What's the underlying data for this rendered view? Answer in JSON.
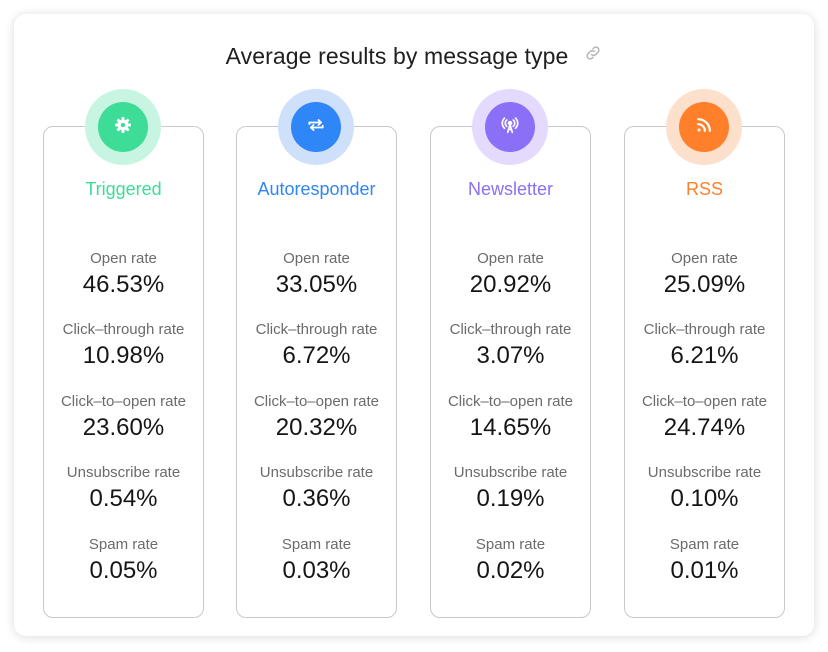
{
  "title": "Average results by message type",
  "accent_colors": {
    "triggered": "#3ddc97",
    "autoresponder": "#2f86f6",
    "newsletter": "#8b6ff6",
    "rss": "#ff7f2a"
  },
  "cards": [
    {
      "name": "Triggered",
      "icon": "gear-icon",
      "metrics": [
        {
          "label": "Open rate",
          "value": "46.53%"
        },
        {
          "label": "Click–through rate",
          "value": "10.98%"
        },
        {
          "label": "Click–to–open rate",
          "value": "23.60%"
        },
        {
          "label": "Unsubscribe rate",
          "value": "0.54%"
        },
        {
          "label": "Spam rate",
          "value": "0.05%"
        }
      ]
    },
    {
      "name": "Autoresponder",
      "icon": "repeat-icon",
      "metrics": [
        {
          "label": "Open rate",
          "value": "33.05%"
        },
        {
          "label": "Click–through rate",
          "value": "6.72%"
        },
        {
          "label": "Click–to–open rate",
          "value": "20.32%"
        },
        {
          "label": "Unsubscribe rate",
          "value": "0.36%"
        },
        {
          "label": "Spam rate",
          "value": "0.03%"
        }
      ]
    },
    {
      "name": "Newsletter",
      "icon": "broadcast-icon",
      "metrics": [
        {
          "label": "Open rate",
          "value": "20.92%"
        },
        {
          "label": "Click–through rate",
          "value": "3.07%"
        },
        {
          "label": "Click–to–open rate",
          "value": "14.65%"
        },
        {
          "label": "Unsubscribe rate",
          "value": "0.19%"
        },
        {
          "label": "Spam rate",
          "value": "0.02%"
        }
      ]
    },
    {
      "name": "RSS",
      "icon": "rss-icon",
      "metrics": [
        {
          "label": "Open rate",
          "value": "25.09%"
        },
        {
          "label": "Click–through rate",
          "value": "6.21%"
        },
        {
          "label": "Click–to–open rate",
          "value": "24.74%"
        },
        {
          "label": "Unsubscribe rate",
          "value": "0.10%"
        },
        {
          "label": "Spam rate",
          "value": "0.01%"
        }
      ]
    }
  ]
}
